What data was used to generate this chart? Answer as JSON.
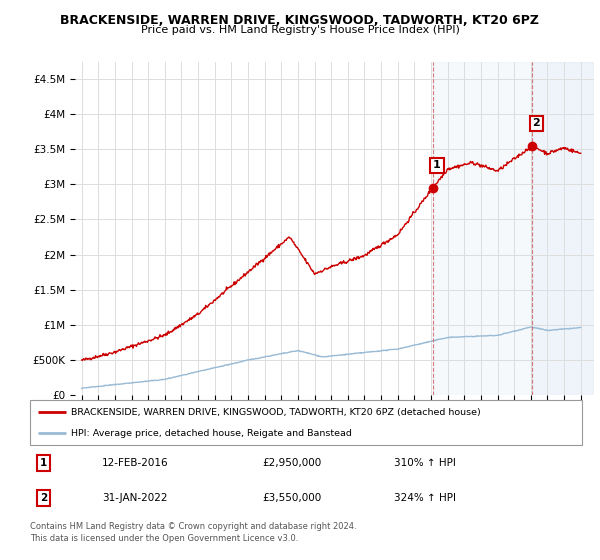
{
  "title": "BRACKENSIDE, WARREN DRIVE, KINGSWOOD, TADWORTH, KT20 6PZ",
  "subtitle": "Price paid vs. HM Land Registry's House Price Index (HPI)",
  "ylim": [
    0,
    4750000
  ],
  "yticks": [
    0,
    500000,
    1000000,
    1500000,
    2000000,
    2500000,
    3000000,
    3500000,
    4000000,
    4500000
  ],
  "ytick_labels": [
    "£0",
    "£500K",
    "£1M",
    "£1.5M",
    "£2M",
    "£2.5M",
    "£3M",
    "£3.5M",
    "£4M",
    "£4.5M"
  ],
  "legend_line1": "BRACKENSIDE, WARREN DRIVE, KINGSWOOD, TADWORTH, KT20 6PZ (detached house)",
  "legend_line2": "HPI: Average price, detached house, Reigate and Banstead",
  "annotation1_date": "12-FEB-2016",
  "annotation1_price": "£2,950,000",
  "annotation1_hpi": "310% ↑ HPI",
  "annotation2_date": "31-JAN-2022",
  "annotation2_price": "£3,550,000",
  "annotation2_hpi": "324% ↑ HPI",
  "footnote": "Contains HM Land Registry data © Crown copyright and database right 2024.\nThis data is licensed under the Open Government Licence v3.0.",
  "line1_color": "#cc0000",
  "line2_color": "#99bbd6",
  "grid_color": "#dddddd",
  "sale1_x": 2016.11,
  "sale1_y": 2950000,
  "sale2_x": 2022.08,
  "sale2_y": 3550000,
  "xlim_left": 1994.6,
  "xlim_right": 2025.8
}
